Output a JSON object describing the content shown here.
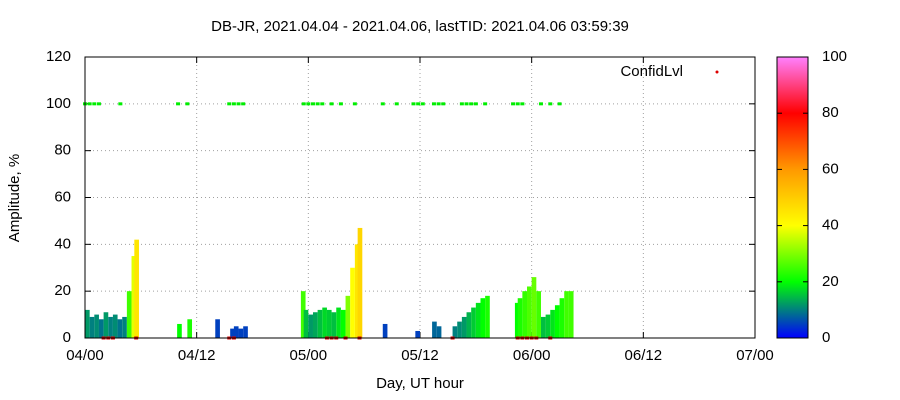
{
  "chart_data": {
    "type": "bar",
    "title": "DB-JR, 2021.04.04 - 2021.04.06, lastTID: 2021.04.06 03:59:39",
    "x_label": "Day, UT hour",
    "y_label": "Amplitude, %",
    "xlim": [
      0,
      72
    ],
    "xticks": [
      {
        "value": 0,
        "label": "04/00"
      },
      {
        "value": 12,
        "label": "04/12"
      },
      {
        "value": 24,
        "label": "05/00"
      },
      {
        "value": 36,
        "label": "05/12"
      },
      {
        "value": 48,
        "label": "06/00"
      },
      {
        "value": 60,
        "label": "06/12"
      },
      {
        "value": 72,
        "label": "07/00"
      }
    ],
    "ylim": [
      0,
      120
    ],
    "yticks": [
      0,
      20,
      40,
      60,
      80,
      100,
      120
    ],
    "grid": true,
    "bar_width": 0.5,
    "amplitude": {
      "x": [
        0,
        0.5,
        1,
        1.5,
        2,
        2.5,
        3,
        3.5,
        4,
        4.5,
        5,
        5.3,
        9.9,
        11,
        14,
        15.6,
        16,
        16.5,
        17,
        23.2,
        23.5,
        24,
        24.5,
        25,
        25.5,
        26,
        26.5,
        27,
        27.5,
        28,
        28.5,
        29,
        29.3,
        32,
        35.5,
        37.3,
        37.8,
        39.5,
        40,
        40.5,
        41,
        41.5,
        42,
        42.5,
        43,
        46.2,
        46.5,
        47,
        47.5,
        48,
        48.5,
        49,
        49.5,
        50,
        50.5,
        51,
        51.5,
        52
      ],
      "values": [
        12,
        9,
        10,
        8,
        11,
        9,
        10,
        8,
        9,
        20,
        35,
        42,
        6,
        8,
        8,
        4,
        5,
        4,
        5,
        20,
        12,
        10,
        11,
        12,
        13,
        12,
        11,
        13,
        12,
        18,
        30,
        40,
        47,
        6,
        3,
        7,
        5,
        5,
        7,
        9,
        11,
        13,
        15,
        17,
        18,
        15,
        17,
        20,
        22,
        26,
        20,
        9,
        10,
        12,
        14,
        17,
        20,
        20
      ],
      "confidence": [
        12,
        10,
        11,
        9,
        12,
        10,
        11,
        9,
        10,
        25,
        38,
        45,
        20,
        22,
        5,
        5,
        5,
        5,
        5,
        25,
        15,
        12,
        13,
        15,
        17,
        16,
        15,
        18,
        20,
        30,
        40,
        45,
        48,
        5,
        5,
        8,
        8,
        10,
        11,
        12,
        14,
        16,
        18,
        20,
        22,
        20,
        22,
        24,
        26,
        28,
        25,
        15,
        16,
        18,
        20,
        22,
        25,
        25
      ]
    },
    "confid_levels": {
      "name": "ConfidLvl",
      "color": "#dd0000",
      "points": [
        {
          "color": "#00ee00",
          "x": [
            0,
            0.5,
            1,
            1.5,
            3.8,
            10,
            11,
            15.5,
            16,
            16.5,
            17,
            23.5,
            24,
            24.5,
            25,
            25.5,
            26.5,
            27.5,
            29,
            32,
            33.5,
            35.3,
            35.8,
            36.3,
            37.5,
            38,
            38.5,
            40.5,
            41,
            41.5,
            42,
            43,
            46,
            46.5,
            47,
            49,
            50,
            51
          ],
          "values": [
            100,
            100,
            100,
            100,
            100,
            100,
            100,
            100,
            100,
            100,
            100,
            100,
            100,
            100,
            100,
            100,
            100,
            100,
            100,
            100,
            100,
            100,
            100,
            100,
            100,
            100,
            100,
            100,
            100,
            100,
            100,
            100,
            100,
            100,
            100,
            100,
            100,
            100
          ]
        },
        {
          "color": "#dd0000",
          "x": [
            2,
            2.5,
            3,
            5.5,
            15.5,
            16,
            26,
            26.5,
            27,
            28,
            29.5,
            39.5,
            46.5,
            47,
            47.5,
            48,
            48.5,
            50
          ],
          "values": [
            0,
            0,
            0,
            0,
            0,
            0,
            0,
            0,
            0,
            0,
            0,
            0,
            0,
            0,
            0,
            0,
            0,
            0
          ]
        }
      ]
    },
    "colorbar": {
      "lim": [
        0,
        100
      ],
      "ticks": [
        0,
        20,
        40,
        60,
        80,
        100
      ],
      "palette": [
        "#0000ff",
        "#00ff00",
        "#ffff00",
        "#ff9900",
        "#ff0000",
        "#ff80ff"
      ]
    }
  }
}
